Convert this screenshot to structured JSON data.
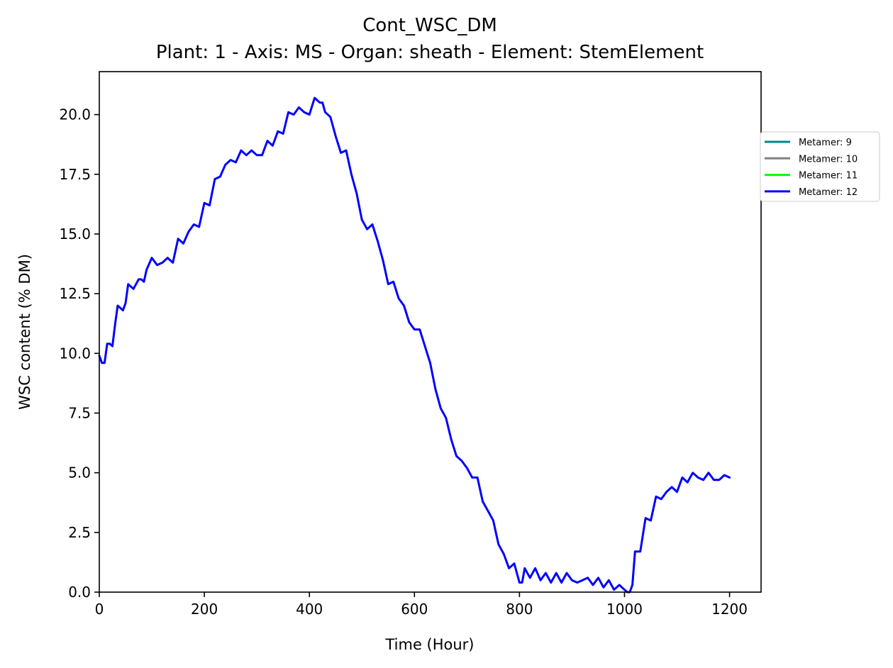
{
  "chart_data": {
    "type": "line",
    "title": "Cont_WSC_DM",
    "subtitle": "Plant: 1 - Axis: MS - Organ: sheath - Element: StemElement",
    "xlabel": "Time (Hour)",
    "ylabel": "WSC content (% DM)",
    "xlim": [
      0,
      1260
    ],
    "ylim": [
      0,
      21.8
    ],
    "xticks": [
      "0",
      "200",
      "400",
      "600",
      "800",
      "1000",
      "1200"
    ],
    "yticks": [
      "0.0",
      "2.5",
      "5.0",
      "7.5",
      "10.0",
      "12.5",
      "15.0",
      "17.5",
      "20.0"
    ],
    "grid": false,
    "legend_position": "right, outside plot area",
    "series": [
      {
        "name": "Metamer: 9",
        "color": "#008b8b",
        "x": [],
        "y": []
      },
      {
        "name": "Metamer: 10",
        "color": "#808080",
        "x": [],
        "y": []
      },
      {
        "name": "Metamer: 11",
        "color": "#00ff00",
        "x": [],
        "y": []
      },
      {
        "name": "Metamer: 12",
        "color": "#0000ff",
        "x": [
          0,
          5,
          10,
          15,
          20,
          25,
          30,
          35,
          40,
          45,
          50,
          55,
          60,
          65,
          70,
          75,
          80,
          85,
          90,
          100,
          110,
          120,
          130,
          140,
          150,
          160,
          170,
          180,
          190,
          200,
          210,
          220,
          230,
          240,
          250,
          260,
          270,
          280,
          290,
          300,
          310,
          320,
          330,
          340,
          350,
          360,
          370,
          380,
          390,
          400,
          410,
          420,
          425,
          430,
          440,
          450,
          460,
          470,
          480,
          490,
          500,
          510,
          520,
          530,
          540,
          550,
          560,
          570,
          580,
          590,
          600,
          610,
          620,
          630,
          640,
          650,
          660,
          670,
          680,
          690,
          700,
          710,
          720,
          730,
          740,
          750,
          760,
          770,
          780,
          790,
          800,
          805,
          810,
          820,
          830,
          840,
          850,
          860,
          870,
          880,
          890,
          900,
          910,
          920,
          930,
          940,
          950,
          960,
          970,
          980,
          990,
          1000,
          1005,
          1010,
          1015,
          1020,
          1030,
          1040,
          1050,
          1060,
          1070,
          1080,
          1090,
          1100,
          1110,
          1120,
          1130,
          1140,
          1150,
          1160,
          1170,
          1180,
          1190,
          1200
        ],
        "y": [
          9.9,
          9.6,
          9.6,
          10.4,
          10.4,
          10.3,
          11.2,
          12.0,
          11.9,
          11.8,
          12.1,
          12.9,
          12.8,
          12.7,
          12.9,
          13.1,
          13.1,
          13.0,
          13.5,
          14.0,
          13.7,
          13.8,
          14.0,
          13.8,
          14.8,
          14.6,
          15.1,
          15.4,
          15.3,
          16.3,
          16.2,
          17.3,
          17.4,
          17.9,
          18.1,
          18.0,
          18.5,
          18.3,
          18.5,
          18.3,
          18.3,
          18.9,
          18.7,
          19.3,
          19.2,
          20.1,
          20.0,
          20.3,
          20.1,
          20.0,
          20.7,
          20.5,
          20.5,
          20.1,
          19.9,
          19.1,
          18.4,
          18.5,
          17.5,
          16.7,
          15.6,
          15.2,
          15.4,
          14.7,
          13.9,
          12.9,
          13.0,
          12.3,
          12.0,
          11.3,
          11.0,
          11.0,
          10.3,
          9.6,
          8.5,
          7.7,
          7.3,
          6.4,
          5.7,
          5.5,
          5.2,
          4.8,
          4.8,
          3.8,
          3.4,
          3.0,
          2.0,
          1.6,
          1.0,
          1.2,
          0.4,
          0.4,
          1.0,
          0.6,
          1.0,
          0.5,
          0.8,
          0.4,
          0.8,
          0.4,
          0.8,
          0.5,
          0.4,
          0.5,
          0.6,
          0.3,
          0.6,
          0.2,
          0.5,
          0.1,
          0.3,
          0.1,
          0.0,
          0.0,
          0.3,
          1.7,
          1.7,
          3.1,
          3.0,
          4.0,
          3.9,
          4.2,
          4.4,
          4.2,
          4.8,
          4.6,
          5.0,
          4.8,
          4.7,
          5.0,
          4.7,
          4.7,
          4.9,
          4.8
        ]
      }
    ]
  }
}
